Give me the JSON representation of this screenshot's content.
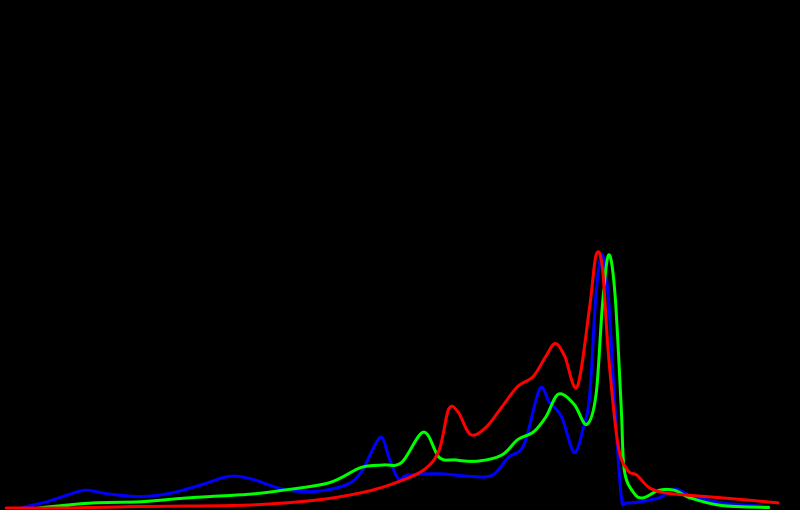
{
  "chart_data": {
    "type": "line",
    "title": "",
    "xlabel": "",
    "ylabel": "",
    "xlim": [
      0,
      255
    ],
    "ylim": [
      0,
      1
    ],
    "grid": false,
    "legend": "none",
    "background": "#000000",
    "series": [
      {
        "color": "#0000ff",
        "points": [
          [
            7,
            0.002
          ],
          [
            10,
            0.01
          ],
          [
            15,
            0.025
          ],
          [
            20,
            0.045
          ],
          [
            25,
            0.065
          ],
          [
            28,
            0.07
          ],
          [
            35,
            0.055
          ],
          [
            45,
            0.045
          ],
          [
            55,
            0.06
          ],
          [
            65,
            0.095
          ],
          [
            73,
            0.125
          ],
          [
            80,
            0.115
          ],
          [
            90,
            0.075
          ],
          [
            100,
            0.065
          ],
          [
            110,
            0.09
          ],
          [
            115,
            0.14
          ],
          [
            120,
            0.26
          ],
          [
            122,
            0.275
          ],
          [
            124,
            0.2
          ],
          [
            127,
            0.115
          ],
          [
            130,
            0.13
          ],
          [
            140,
            0.135
          ],
          [
            150,
            0.125
          ],
          [
            157,
            0.13
          ],
          [
            162,
            0.2
          ],
          [
            167,
            0.25
          ],
          [
            172,
            0.47
          ],
          [
            175,
            0.42
          ],
          [
            179,
            0.36
          ],
          [
            183,
            0.22
          ],
          [
            186,
            0.32
          ],
          [
            188,
            0.45
          ],
          [
            190,
            0.85
          ],
          [
            192,
            1.0
          ],
          [
            194,
            0.82
          ],
          [
            196,
            0.4
          ],
          [
            198,
            0.05
          ],
          [
            200,
            0.02
          ],
          [
            210,
            0.04
          ],
          [
            215,
            0.075
          ],
          [
            220,
            0.05
          ],
          [
            230,
            0.02
          ],
          [
            245,
            0.005
          ]
        ]
      },
      {
        "color": "#00ff00",
        "points": [
          [
            12,
            0.0
          ],
          [
            20,
            0.01
          ],
          [
            30,
            0.02
          ],
          [
            45,
            0.025
          ],
          [
            60,
            0.04
          ],
          [
            80,
            0.055
          ],
          [
            90,
            0.07
          ],
          [
            105,
            0.1
          ],
          [
            115,
            0.16
          ],
          [
            122,
            0.17
          ],
          [
            128,
            0.18
          ],
          [
            135,
            0.3
          ],
          [
            140,
            0.2
          ],
          [
            145,
            0.19
          ],
          [
            152,
            0.185
          ],
          [
            160,
            0.21
          ],
          [
            165,
            0.27
          ],
          [
            170,
            0.3
          ],
          [
            174,
            0.36
          ],
          [
            178,
            0.45
          ],
          [
            183,
            0.41
          ],
          [
            187,
            0.33
          ],
          [
            190,
            0.45
          ],
          [
            192,
            0.8
          ],
          [
            194,
            1.0
          ],
          [
            196,
            0.85
          ],
          [
            198,
            0.4
          ],
          [
            199,
            0.15
          ],
          [
            202,
            0.06
          ],
          [
            205,
            0.04
          ],
          [
            210,
            0.07
          ],
          [
            215,
            0.07
          ],
          [
            220,
            0.04
          ],
          [
            230,
            0.01
          ],
          [
            245,
            0.002
          ]
        ]
      },
      {
        "color": "#ff0000",
        "points": [
          [
            2,
            0.0
          ],
          [
            20,
            0.0
          ],
          [
            40,
            0.005
          ],
          [
            60,
            0.008
          ],
          [
            80,
            0.012
          ],
          [
            100,
            0.03
          ],
          [
            115,
            0.06
          ],
          [
            125,
            0.095
          ],
          [
            135,
            0.15
          ],
          [
            140,
            0.23
          ],
          [
            143,
            0.39
          ],
          [
            146,
            0.38
          ],
          [
            150,
            0.29
          ],
          [
            155,
            0.32
          ],
          [
            160,
            0.4
          ],
          [
            165,
            0.48
          ],
          [
            170,
            0.52
          ],
          [
            174,
            0.6
          ],
          [
            177,
            0.65
          ],
          [
            180,
            0.6
          ],
          [
            184,
            0.48
          ],
          [
            188,
            0.8
          ],
          [
            190,
            1.0
          ],
          [
            192,
            0.95
          ],
          [
            194,
            0.6
          ],
          [
            197,
            0.25
          ],
          [
            200,
            0.15
          ],
          [
            203,
            0.13
          ],
          [
            207,
            0.08
          ],
          [
            212,
            0.06
          ],
          [
            220,
            0.05
          ],
          [
            235,
            0.035
          ],
          [
            248,
            0.02
          ]
        ]
      }
    ]
  }
}
